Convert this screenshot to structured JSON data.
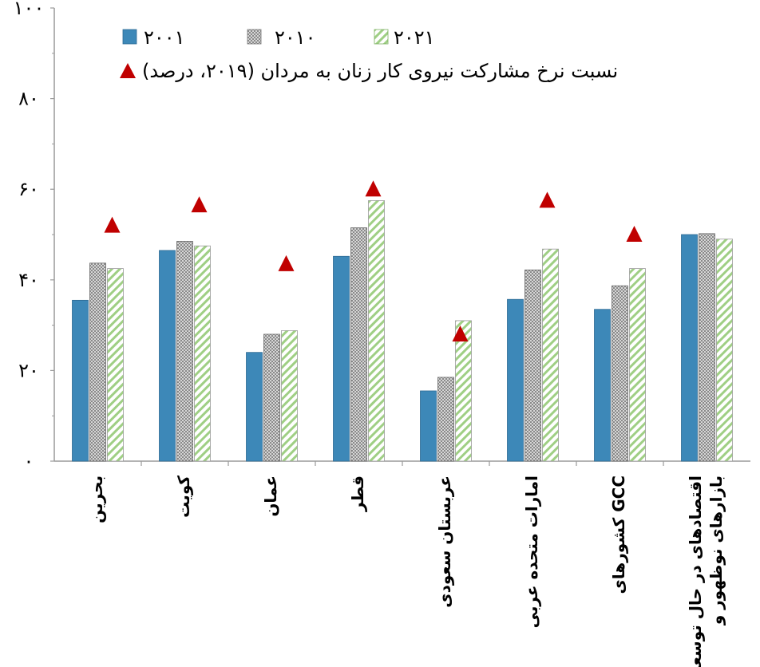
{
  "chart_data": {
    "type": "bar",
    "categories": [
      "بحرین",
      "کویت",
      "عمان",
      "قطر",
      "عربستان سعودی",
      "امارات متحده عربی",
      "کشورهای GCC",
      "اقتصادهای در حال توسعه و بازارهای نوظهور"
    ],
    "category_lines": [
      [
        "بحرین"
      ],
      [
        "کویت"
      ],
      [
        "عمان"
      ],
      [
        "قطر"
      ],
      [
        "عربستان سعودی"
      ],
      [
        "امارات متحده عربی"
      ],
      [
        "کشورهای GCC"
      ],
      [
        "اقتصادهای در حال توسعه",
        "بازارهای نوظهور و"
      ]
    ],
    "series": [
      {
        "name": "۲۰۰۱",
        "values": [
          35.5,
          46.5,
          24,
          45.2,
          15.5,
          35.7,
          33.5,
          50
        ],
        "color": "#3d88b8",
        "pattern": "solid"
      },
      {
        "name": "۲۰۱۰",
        "values": [
          43.7,
          48.5,
          28,
          51.5,
          18.5,
          42.2,
          38.7,
          50.2
        ],
        "color": "#bbbbbb",
        "pattern": "dots"
      },
      {
        "name": "۲۰۲۱",
        "values": [
          42.5,
          47.5,
          28.8,
          57.5,
          31,
          46.8,
          42.5,
          49
        ]
      }
    ],
    "markers": {
      "name": "نسبت نرخ مشارکت نیروی کار زنان به مردان (۲۰۱۹، درصد)",
      "values": [
        52,
        56.5,
        43.5,
        60,
        28,
        57.5,
        50,
        null
      ],
      "color": "#c00000"
    },
    "ylim": [
      0,
      100
    ],
    "yticks": [
      "۰",
      "۲۰",
      "۴۰",
      "۶۰",
      "۸۰",
      "۱۰۰"
    ],
    "xlabel": "",
    "ylabel": "",
    "title": "",
    "grid": false,
    "legend_position": "top"
  }
}
